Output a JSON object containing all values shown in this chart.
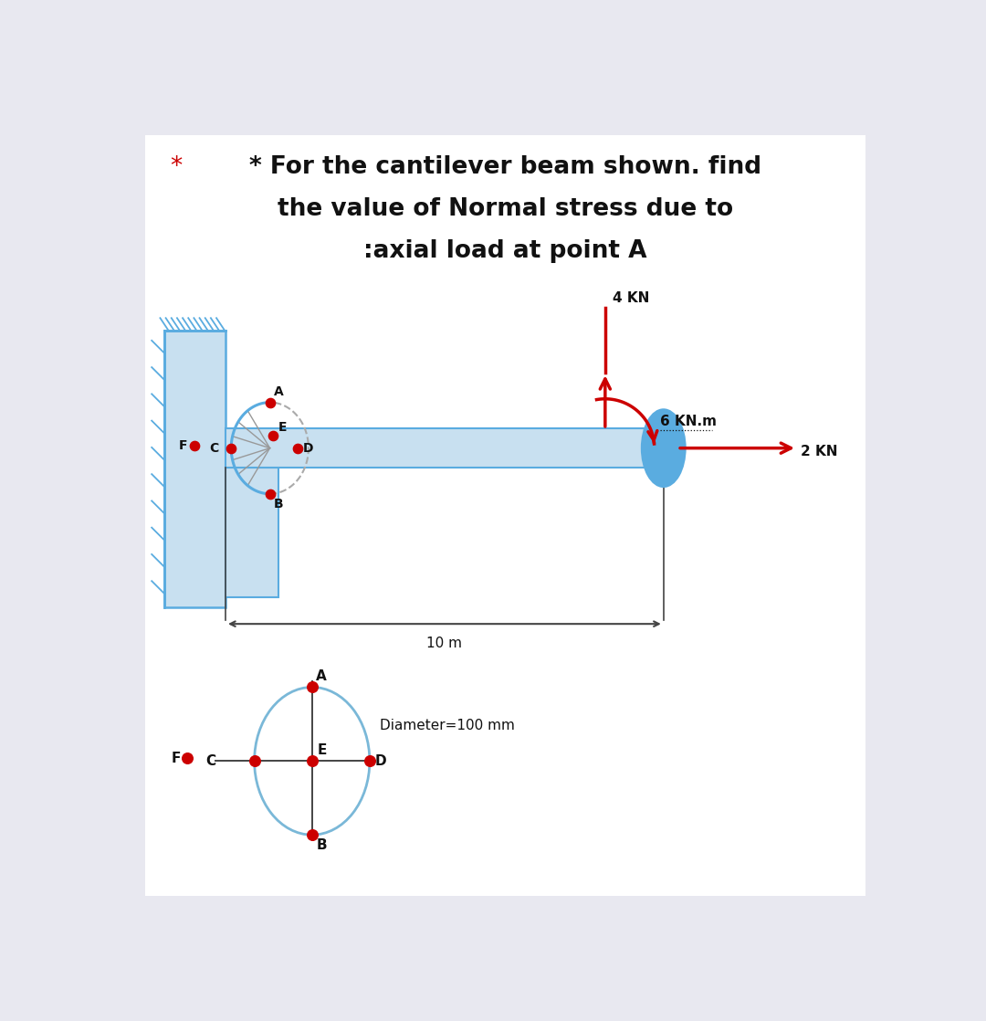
{
  "title_line1": "* For the cantilever beam shown. find",
  "title_line2": "the value of Normal stress due to",
  "title_line3": ":axial load at point A",
  "bg_color": "#e8e8f0",
  "panel_color": "#ffffff",
  "beam_color": "#5aace0",
  "beam_fill": "#c8e0f0",
  "wall_color": "#5aace0",
  "wall_fill": "#c8e0f0",
  "ellipse_fill": "#5aace0",
  "point_color": "#cc0000",
  "arrow_color": "#cc0000",
  "text_color": "#111111",
  "dim_color": "#444444",
  "force_4kn_label": "4 KN",
  "force_2kn_label": "2 KN",
  "moment_label": "6 KN.m",
  "length_label": "10 m",
  "diameter_label": "Diameter=100 mm"
}
